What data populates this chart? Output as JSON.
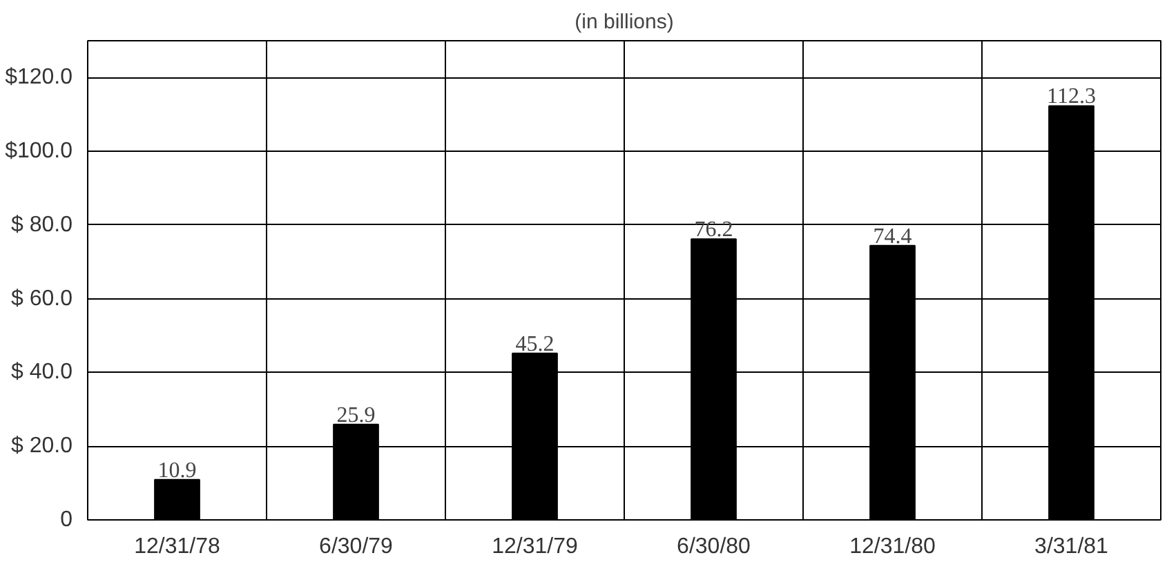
{
  "chart_data": {
    "type": "bar",
    "title": "(in billions)",
    "categories": [
      "12/31/78",
      "6/30/79",
      "12/31/79",
      "6/30/80",
      "12/31/80",
      "3/31/81"
    ],
    "values": [
      10.9,
      25.9,
      45.2,
      76.2,
      74.4,
      112.3
    ],
    "color": "#000000",
    "data_labels": true,
    "ylim": [
      0,
      130
    ],
    "yticks": [
      {
        "value": 0,
        "label": "0"
      },
      {
        "value": 20,
        "label": "$ 20.0"
      },
      {
        "value": 40,
        "label": "$ 40.0"
      },
      {
        "value": 60,
        "label": "$ 60.0"
      },
      {
        "value": 80,
        "label": "$ 80.0"
      },
      {
        "value": 100,
        "label": "$100.0"
      },
      {
        "value": 120,
        "label": "$120.0"
      }
    ],
    "grid": true
  }
}
